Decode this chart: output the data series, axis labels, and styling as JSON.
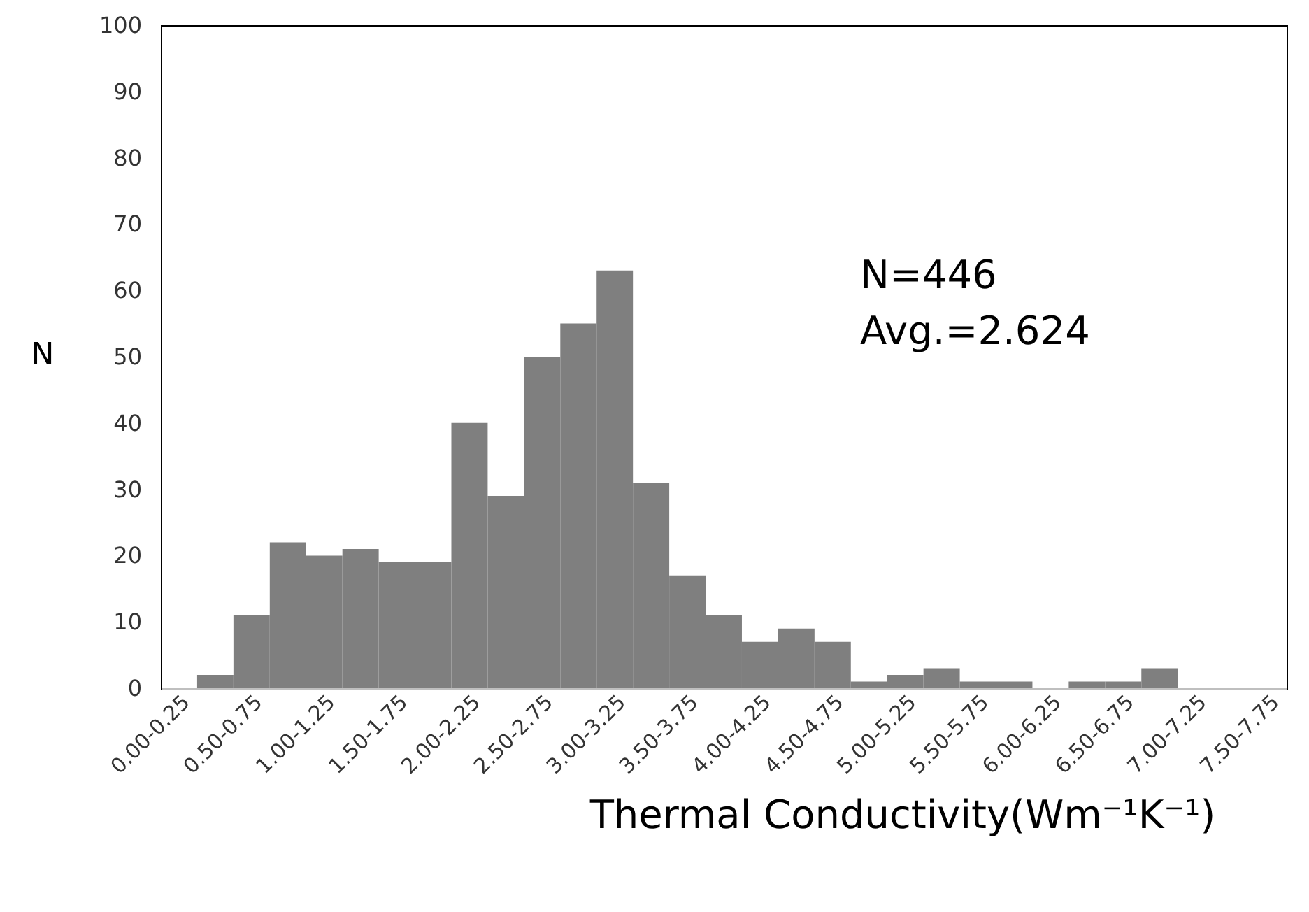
{
  "chart_data": {
    "type": "bar",
    "xlabel": "Thermal Conductivity(Wm⁻¹K⁻¹)",
    "ylabel": "N",
    "categories": [
      "0.00-0.25",
      null,
      "0.50-0.75",
      null,
      "1.00-1.25",
      null,
      "1.50-1.75",
      null,
      "2.00-2.25",
      null,
      "2.50-2.75",
      null,
      "3.00-3.25",
      null,
      "3.50-3.75",
      null,
      "4.00-4.25",
      null,
      "4.50-4.75",
      null,
      "5.00-5.25",
      null,
      "5.50-5.75",
      null,
      "6.00-6.25",
      null,
      "6.50-6.75",
      null,
      "7.00-7.25",
      null,
      "7.50-7.75"
    ],
    "values": [
      0,
      2,
      11,
      22,
      20,
      21,
      19,
      19,
      40,
      29,
      50,
      55,
      63,
      31,
      17,
      11,
      7,
      9,
      7,
      1,
      2,
      3,
      1,
      1,
      0,
      1,
      1,
      3,
      0,
      0,
      0
    ],
    "color": "#7f7f7f",
    "ylim": [
      0,
      100
    ],
    "yticks": [
      0,
      10,
      20,
      30,
      40,
      50,
      60,
      70,
      80,
      90,
      100
    ],
    "annotations": [
      "N=446",
      "Avg.=2.624"
    ]
  }
}
